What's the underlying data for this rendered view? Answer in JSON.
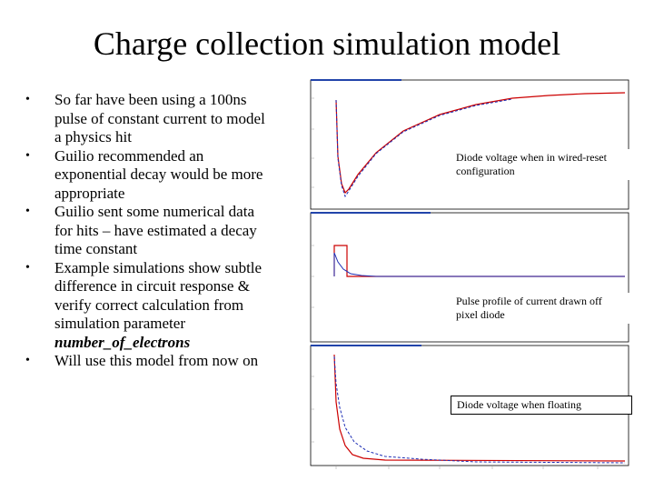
{
  "slide": {
    "title": "Charge collection simulation model",
    "bullets": [
      {
        "text": "So far have been using a 100ns pulse of constant current to model a physics hit"
      },
      {
        "text": "Guilio recommended an exponential decay would be more appropriate"
      },
      {
        "text": "Guilio sent some numerical data for hits – have estimated a decay time constant"
      },
      {
        "text": "Example simulations show subtle difference in circuit response & verify correct calculation from simulation parameter",
        "emphasis": "number_of_electrons"
      },
      {
        "text": "Will use this model from now on"
      }
    ],
    "bullet_symbol": "•"
  },
  "plots": {
    "panels": [
      {
        "annotation": "Diode voltage when in wired-reset configuration"
      },
      {
        "annotation": "Pulse profile of current drawn off pixel diode"
      },
      {
        "annotation": "Diode voltage when floating"
      }
    ],
    "colors": {
      "red": "#cc0000",
      "blue": "#1f2fb5",
      "header": "#2244aa",
      "frame": "#000000",
      "grid": "#999999"
    }
  }
}
